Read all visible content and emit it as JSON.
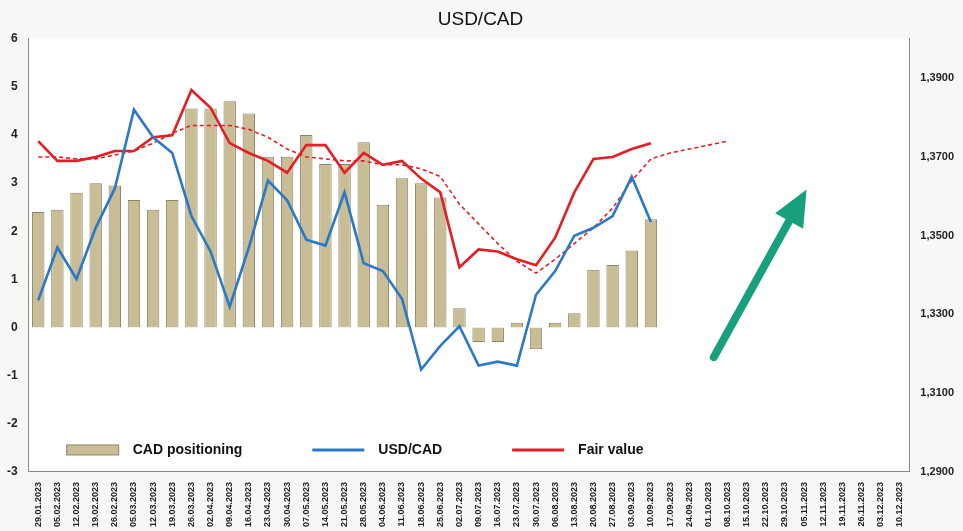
{
  "chart_data": {
    "type": "bar",
    "title": "USD/CAD",
    "categories": [
      "29.01.2023",
      "05.02.2023",
      "12.02.2023",
      "19.02.2023",
      "26.02.2023",
      "05.03.2023",
      "12.03.2023",
      "19.03.2023",
      "26.03.2023",
      "02.04.2023",
      "09.04.2023",
      "16.04.2023",
      "23.04.2023",
      "30.04.2023",
      "07.05.2023",
      "14.05.2023",
      "21.05.2023",
      "28.05.2023",
      "04.06.2023",
      "11.06.2023",
      "18.06.2023",
      "25.06.2023",
      "02.07.2023",
      "09.07.2023",
      "16.07.2023",
      "23.07.2023",
      "30.07.2023",
      "06.08.2023",
      "13.08.2023",
      "20.08.2023",
      "27.08.2023",
      "03.09.2023",
      "10.09.2023",
      "17.09.2023",
      "24.09.2023",
      "01.10.2023",
      "08.10.2023",
      "15.10.2023",
      "22.10.2023",
      "29.10.2023",
      "05.11.2023",
      "12.11.2023",
      "19.11.2023",
      "26.11.2023",
      "03.12.2023",
      "10.12.2023"
    ],
    "series": [
      {
        "name": "CAD positioning",
        "type": "bar",
        "color": "#c8bd95",
        "values": [
          2.4,
          2.45,
          2.8,
          3.0,
          2.95,
          2.65,
          2.45,
          2.65,
          4.55,
          4.55,
          4.7,
          4.45,
          3.55,
          3.55,
          4.0,
          3.4,
          3.4,
          3.85,
          2.55,
          3.1,
          3.0,
          2.7,
          0.4,
          -0.3,
          -0.3,
          0.1,
          -0.45,
          0.1,
          0.3,
          1.2,
          1.3,
          1.6,
          2.25,
          null,
          null,
          null,
          null,
          null,
          null,
          null,
          null,
          null,
          null,
          null,
          null,
          null
        ]
      },
      {
        "name": "USD/CAD",
        "type": "line",
        "color": "#2a78c8",
        "axis": "y2",
        "values": [
          1.3336,
          1.347,
          1.339,
          1.352,
          1.362,
          1.382,
          1.375,
          1.371,
          1.355,
          1.346,
          1.332,
          1.347,
          1.364,
          1.359,
          1.349,
          1.3475,
          1.361,
          1.343,
          1.341,
          1.334,
          1.316,
          1.322,
          1.327,
          1.317,
          1.318,
          1.317,
          1.335,
          1.341,
          1.35,
          1.352,
          1.355,
          1.365,
          1.3535,
          null,
          null,
          null,
          null,
          null,
          null,
          null,
          null,
          null,
          null,
          null,
          null,
          null
        ]
      },
      {
        "name": "Fair value",
        "type": "line",
        "color": "#e31e24",
        "axis": "y2",
        "values": [
          1.374,
          1.369,
          1.369,
          1.37,
          1.3715,
          1.3715,
          1.375,
          1.3755,
          1.387,
          1.3825,
          1.3735,
          1.371,
          1.369,
          1.366,
          1.373,
          1.373,
          1.366,
          1.371,
          1.368,
          1.369,
          1.3645,
          1.361,
          1.342,
          1.3465,
          1.346,
          1.344,
          1.3425,
          1.3495,
          1.361,
          1.3695,
          1.37,
          1.372,
          1.3735,
          null,
          null,
          null,
          null,
          null,
          null,
          null,
          null,
          null,
          null,
          null,
          null,
          null
        ]
      },
      {
        "type": "line",
        "color": "#e31e24",
        "line_style": "dashed",
        "axis": "y2",
        "values": [
          1.37,
          1.37,
          1.3695,
          1.3695,
          1.3705,
          1.3715,
          1.3735,
          1.376,
          1.378,
          1.378,
          1.378,
          1.377,
          1.375,
          1.372,
          1.37,
          1.3695,
          1.369,
          1.369,
          1.368,
          1.368,
          1.367,
          1.365,
          1.358,
          1.353,
          1.348,
          1.3435,
          1.3405,
          1.344,
          1.348,
          1.352,
          1.357,
          1.364,
          1.3695,
          1.371,
          1.372,
          1.373,
          1.374,
          null,
          null,
          null,
          null,
          null,
          null,
          null,
          null,
          null
        ]
      }
    ],
    "ylim": [
      -3,
      6
    ],
    "yticks": [
      -3,
      -2,
      -1,
      0,
      1,
      2,
      3,
      4,
      5,
      6
    ],
    "y2lim": [
      1.29,
      1.4
    ],
    "y2ticks": [
      {
        "value": 1.29,
        "label": "1,2900"
      },
      {
        "value": 1.31,
        "label": "1,3100"
      },
      {
        "value": 1.33,
        "label": "1,3300"
      },
      {
        "value": 1.35,
        "label": "1,3500"
      },
      {
        "value": 1.37,
        "label": "1,3700"
      },
      {
        "value": 1.39,
        "label": "1,3900"
      }
    ],
    "grid": false,
    "legend": "lower left"
  }
}
